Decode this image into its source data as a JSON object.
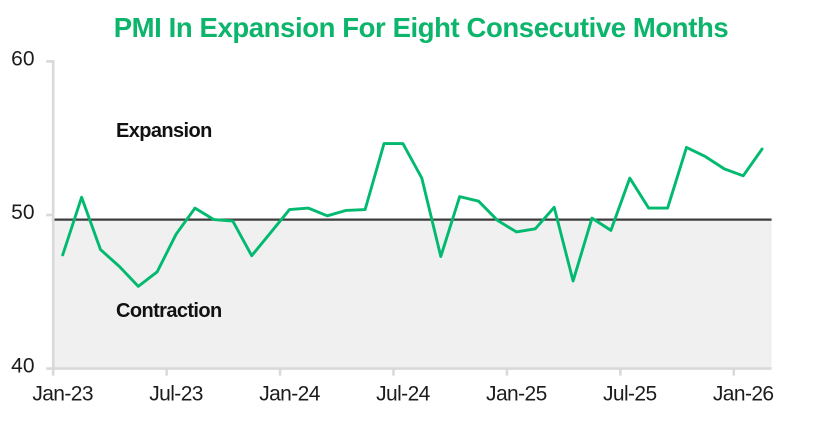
{
  "chart_data": {
    "type": "line",
    "title": "PMI In Expansion For Eight Consecutive Months",
    "categories": [
      "Jan-23",
      "Feb-23",
      "Mar-23",
      "Apr-23",
      "May-23",
      "Jun-23",
      "Jul-23",
      "Aug-23",
      "Sep-23",
      "Oct-23",
      "Nov-23",
      "Dec-23",
      "Jan-24",
      "Feb-24",
      "Mar-24",
      "Apr-24",
      "May-24",
      "Jun-24",
      "Jul-24",
      "Aug-24",
      "Sep-24",
      "Oct-24",
      "Nov-24",
      "Dec-24",
      "Jan-25",
      "Feb-25",
      "Mar-25",
      "Apr-25",
      "May-25",
      "Jun-25",
      "Jul-25",
      "Aug-25",
      "Sep-25",
      "Oct-25",
      "Nov-25",
      "Dec-25",
      "Jan-26",
      "Feb-26"
    ],
    "series": [
      {
        "name": "PMI",
        "values": [
          47.4,
          51.15,
          47.75,
          46.65,
          45.35,
          46.3,
          48.75,
          50.45,
          49.7,
          49.6,
          47.35,
          48.85,
          50.35,
          50.45,
          49.95,
          50.3,
          50.35,
          54.65,
          54.65,
          52.4,
          47.3,
          51.2,
          50.9,
          49.65,
          48.9,
          49.1,
          50.5,
          45.7,
          49.8,
          49.0,
          52.4,
          50.45,
          50.45,
          54.4,
          53.8,
          53.0,
          52.55,
          54.3
        ]
      }
    ],
    "x_tick_labels": [
      "Jan-23",
      "Jul-23",
      "Jan-24",
      "Jul-24",
      "Jan-25",
      "Jul-25",
      "Jan-26"
    ],
    "y_tick_labels": [
      "60",
      "50",
      "40"
    ],
    "y_ticks": [
      60,
      50,
      40
    ],
    "ylim": [
      40,
      60
    ],
    "reference_line": {
      "value": 49.7
    },
    "annotations": [
      {
        "id": "expansion",
        "text": "Expansion"
      },
      {
        "id": "contraction",
        "text": "Contraction"
      }
    ],
    "legend": "none",
    "grid": "off",
    "colors": {
      "title": "#0cb56b",
      "line": "#01ba6f",
      "reference_line": "#3d3d3d",
      "shade": "#f0f0f0",
      "axis": "#d9d9d9",
      "tick_text": "#1c1c1c",
      "annotation_text": "#111111"
    }
  }
}
